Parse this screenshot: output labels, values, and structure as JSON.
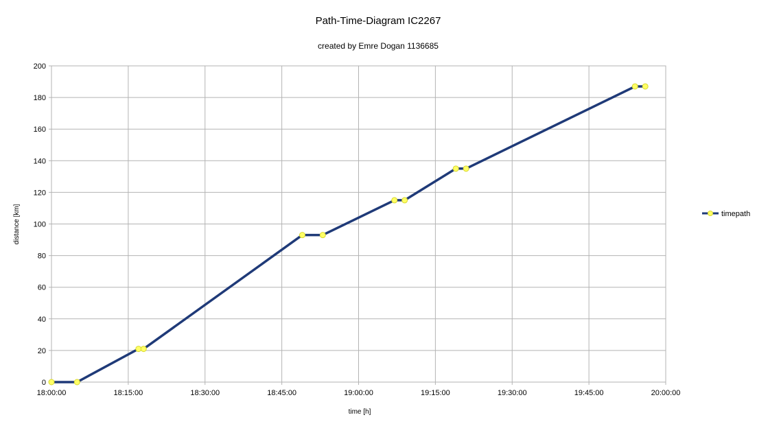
{
  "chart_data": {
    "type": "line",
    "title": "Path-Time-Diagram IC2267",
    "subtitle": "created by  Emre Dogan 1136685",
    "xlabel": "time [h]",
    "ylabel": "distance [km]",
    "x_ticks": [
      "18:00:00",
      "18:15:00",
      "18:30:00",
      "18:45:00",
      "19:00:00",
      "19:15:00",
      "19:30:00",
      "19:45:00",
      "20:00:00"
    ],
    "x_range": [
      "18:00:00",
      "20:00:00"
    ],
    "ylim": [
      0,
      200
    ],
    "y_ticks": [
      0,
      20,
      40,
      60,
      80,
      100,
      120,
      140,
      160,
      180,
      200
    ],
    "grid": true,
    "legend_position": "right",
    "colors": {
      "line": "#1f3a78",
      "marker_fill": "#ffff66",
      "marker_stroke": "#d8d830",
      "grid": "#b3b3b3"
    },
    "series": [
      {
        "name": "timepath",
        "x": [
          "18:00:00",
          "18:05:00",
          "18:17:00",
          "18:18:00",
          "18:49:00",
          "18:53:00",
          "19:07:00",
          "19:09:00",
          "19:19:00",
          "19:21:00",
          "19:54:00",
          "19:56:00"
        ],
        "y": [
          0,
          0,
          21,
          21,
          93,
          93,
          115,
          115,
          135,
          135,
          187,
          187
        ]
      }
    ]
  }
}
